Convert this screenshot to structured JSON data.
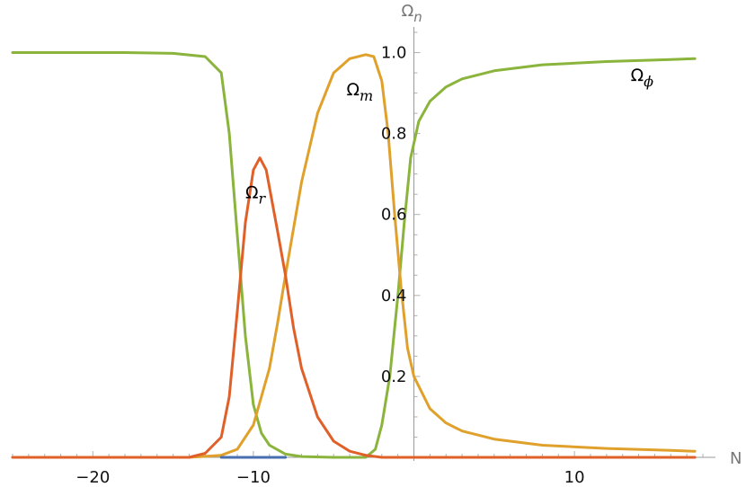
{
  "chart_data": {
    "type": "line",
    "xlabel": "N",
    "ylabel": {
      "base": "Ω",
      "sub": "n"
    },
    "xlim": [
      -25,
      18
    ],
    "ylim": [
      0,
      1.09
    ],
    "x_ticks": [
      -20,
      -10,
      10
    ],
    "y_ticks": [
      "0.2",
      "0.4",
      "0.6",
      "0.8",
      "1.0"
    ],
    "series": [
      {
        "name": "Ω_φ",
        "label": {
          "base": "Ω",
          "sub": "ϕ"
        },
        "color": "#8ab43c",
        "points": [
          [
            -25,
            1.0
          ],
          [
            -18,
            1.0
          ],
          [
            -15,
            0.998
          ],
          [
            -13,
            0.99
          ],
          [
            -12,
            0.95
          ],
          [
            -11.5,
            0.8
          ],
          [
            -11,
            0.55
          ],
          [
            -10.5,
            0.3
          ],
          [
            -10,
            0.13
          ],
          [
            -9.5,
            0.06
          ],
          [
            -9,
            0.03
          ],
          [
            -8,
            0.008
          ],
          [
            -7,
            0.002
          ],
          [
            -5,
            0.0
          ],
          [
            -3,
            0.0
          ],
          [
            -2.4,
            0.02
          ],
          [
            -2,
            0.08
          ],
          [
            -1.5,
            0.2
          ],
          [
            -1,
            0.4
          ],
          [
            -0.6,
            0.58
          ],
          [
            -0.2,
            0.74
          ],
          [
            0.3,
            0.83
          ],
          [
            1,
            0.88
          ],
          [
            2,
            0.915
          ],
          [
            3,
            0.935
          ],
          [
            5,
            0.955
          ],
          [
            8,
            0.97
          ],
          [
            12,
            0.978
          ],
          [
            16,
            0.983
          ],
          [
            17.5,
            0.985
          ]
        ]
      },
      {
        "name": "Ω_m",
        "label": {
          "base": "Ω",
          "sub": "m"
        },
        "color": "#e0a12c",
        "points": [
          [
            -25,
            0.0
          ],
          [
            -14,
            0.0
          ],
          [
            -12,
            0.005
          ],
          [
            -11,
            0.02
          ],
          [
            -10,
            0.08
          ],
          [
            -9,
            0.22
          ],
          [
            -8.5,
            0.33
          ],
          [
            -8,
            0.45
          ],
          [
            -7,
            0.68
          ],
          [
            -6,
            0.85
          ],
          [
            -5,
            0.95
          ],
          [
            -4,
            0.985
          ],
          [
            -3,
            0.995
          ],
          [
            -2.5,
            0.99
          ],
          [
            -2,
            0.93
          ],
          [
            -1.6,
            0.8
          ],
          [
            -1.2,
            0.6
          ],
          [
            -0.8,
            0.42
          ],
          [
            -0.4,
            0.27
          ],
          [
            0,
            0.2
          ],
          [
            1,
            0.12
          ],
          [
            2,
            0.085
          ],
          [
            3,
            0.065
          ],
          [
            5,
            0.045
          ],
          [
            8,
            0.03
          ],
          [
            12,
            0.022
          ],
          [
            16,
            0.017
          ],
          [
            17.5,
            0.015
          ]
        ]
      },
      {
        "name": "Ω_r",
        "label": {
          "base": "Ω",
          "sub": "r"
        },
        "color": "#e0602a",
        "points": [
          [
            -25,
            0.0
          ],
          [
            -14,
            0.0
          ],
          [
            -13,
            0.01
          ],
          [
            -12,
            0.05
          ],
          [
            -11.5,
            0.15
          ],
          [
            -11,
            0.36
          ],
          [
            -10.5,
            0.58
          ],
          [
            -10,
            0.71
          ],
          [
            -9.6,
            0.74
          ],
          [
            -9.2,
            0.71
          ],
          [
            -8.5,
            0.56
          ],
          [
            -8,
            0.45
          ],
          [
            -7.5,
            0.32
          ],
          [
            -7,
            0.22
          ],
          [
            -6,
            0.1
          ],
          [
            -5,
            0.04
          ],
          [
            -4,
            0.015
          ],
          [
            -3,
            0.005
          ],
          [
            -2,
            0.0
          ],
          [
            17.5,
            0.0
          ]
        ]
      },
      {
        "name": "",
        "label": null,
        "color": "#4a6fb0",
        "points": [
          [
            -12,
            0.0
          ],
          [
            -8,
            0.0
          ]
        ]
      }
    ]
  }
}
